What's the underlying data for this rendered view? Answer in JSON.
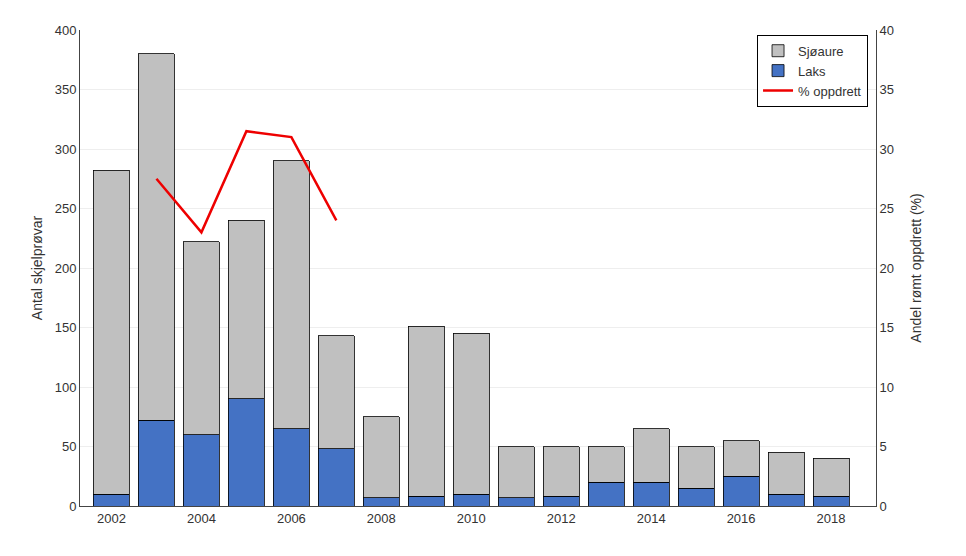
{
  "chart_data": {
    "type": "bar",
    "stacked": true,
    "x": [
      2002,
      2003,
      2004,
      2005,
      2006,
      2007,
      2008,
      2009,
      2010,
      2011,
      2012,
      2013,
      2014,
      2015,
      2016,
      2017,
      2018
    ],
    "xlim": [
      2001.3,
      2019.0
    ],
    "xticks": [
      2002,
      2004,
      2006,
      2008,
      2010,
      2012,
      2014,
      2016,
      2018
    ],
    "ylabel": "Antal skjelprøvar",
    "ylim": [
      0,
      400
    ],
    "yticks": [
      0,
      50,
      100,
      150,
      200,
      250,
      300,
      350,
      400
    ],
    "y2label": "Andel rømt oppdrett (%)",
    "y2lim": [
      0,
      40
    ],
    "y2ticks": [
      0,
      5,
      10,
      15,
      20,
      25,
      30,
      35,
      40
    ],
    "grid": "y",
    "legend": "upper right",
    "series": [
      {
        "name": "Laks",
        "color": "#4472c4",
        "values": [
          10,
          72,
          60,
          90,
          65,
          48,
          7,
          8,
          10,
          7,
          8,
          20,
          20,
          15,
          25,
          10,
          8
        ]
      },
      {
        "name": "Sjøaure",
        "color": "#c0c0c0",
        "values": [
          272,
          308,
          162,
          150,
          225,
          95,
          68,
          143,
          135,
          43,
          42,
          30,
          45,
          35,
          30,
          35,
          32
        ]
      },
      {
        "name": "% oppdrett",
        "type": "line",
        "axis": "y2",
        "color": "#ee0000",
        "x": [
          2003,
          2004,
          2005,
          2006,
          2007
        ],
        "values": [
          27.5,
          23.0,
          31.5,
          31.0,
          24.0
        ]
      }
    ]
  }
}
